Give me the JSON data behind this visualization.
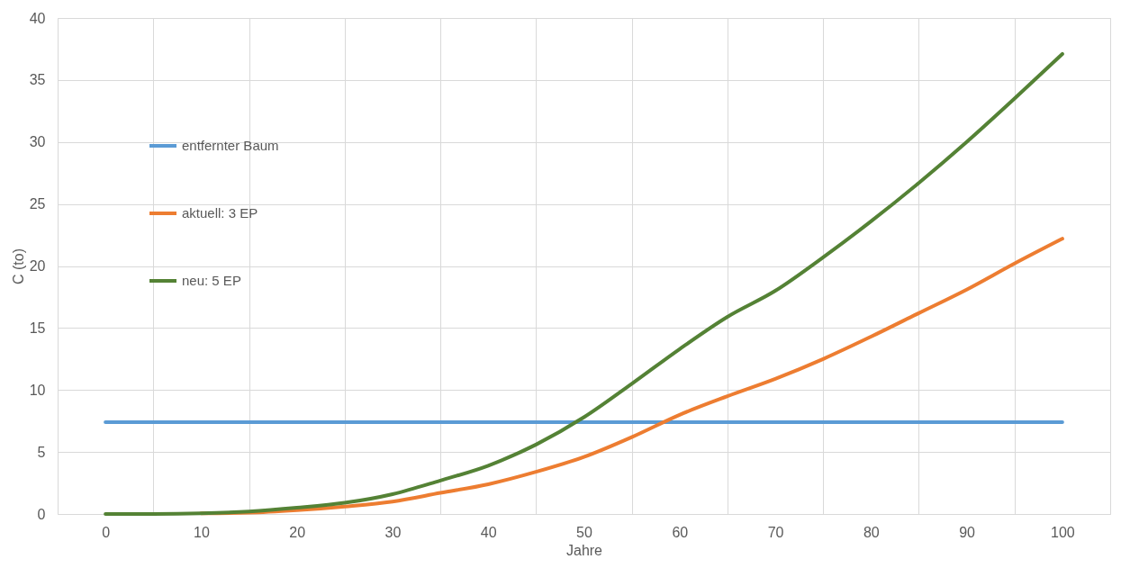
{
  "chart_data": {
    "type": "line",
    "xlabel": "Jahre",
    "ylabel": "C (to)",
    "x": [
      0,
      5,
      10,
      15,
      20,
      25,
      30,
      35,
      40,
      45,
      50,
      55,
      60,
      65,
      70,
      75,
      80,
      85,
      90,
      95,
      100
    ],
    "series": [
      {
        "name": "entfernter Baum",
        "color": "#5b9bd5",
        "values": [
          7.4,
          7.4,
          7.4,
          7.4,
          7.4,
          7.4,
          7.4,
          7.4,
          7.4,
          7.4,
          7.4,
          7.4,
          7.4,
          7.4,
          7.4,
          7.4,
          7.4,
          7.4,
          7.4,
          7.4,
          7.4
        ]
      },
      {
        "name": "aktuell: 3 EP",
        "color": "#ed7d31",
        "values": [
          null,
          null,
          0.05,
          0.1,
          0.3,
          0.6,
          1.0,
          1.7,
          2.4,
          3.4,
          4.6,
          6.2,
          8.0,
          9.5,
          10.9,
          12.5,
          14.3,
          16.2,
          18.1,
          20.2,
          22.2
        ]
      },
      {
        "name": "neu: 5 EP",
        "color": "#548235",
        "values": [
          0,
          0,
          0.05,
          0.2,
          0.5,
          0.9,
          1.6,
          2.7,
          3.9,
          5.6,
          7.8,
          10.5,
          13.3,
          15.9,
          18.0,
          20.7,
          23.6,
          26.7,
          30.0,
          33.5,
          37.1
        ]
      }
    ],
    "xlim": [
      -5,
      105
    ],
    "xticks": [
      {
        "value": -5,
        "label": null
      },
      0,
      {
        "value": 5,
        "label": null
      },
      10,
      {
        "value": 15,
        "label": null
      },
      20,
      {
        "value": 25,
        "label": null
      },
      30,
      {
        "value": 35,
        "label": null
      },
      40,
      {
        "value": 45,
        "label": null
      },
      50,
      {
        "value": 55,
        "label": null
      },
      60,
      {
        "value": 65,
        "label": null
      },
      70,
      {
        "value": 75,
        "label": null
      },
      80,
      {
        "value": 85,
        "label": null
      },
      90,
      {
        "value": 95,
        "label": null
      },
      100,
      {
        "value": 105,
        "label": null
      }
    ],
    "ylim": [
      0,
      40
    ],
    "yticks": [
      0,
      5,
      10,
      15,
      20,
      25,
      30,
      35,
      40
    ],
    "grid": true,
    "legend": "top left",
    "marker": "none",
    "line_style": "solid"
  }
}
